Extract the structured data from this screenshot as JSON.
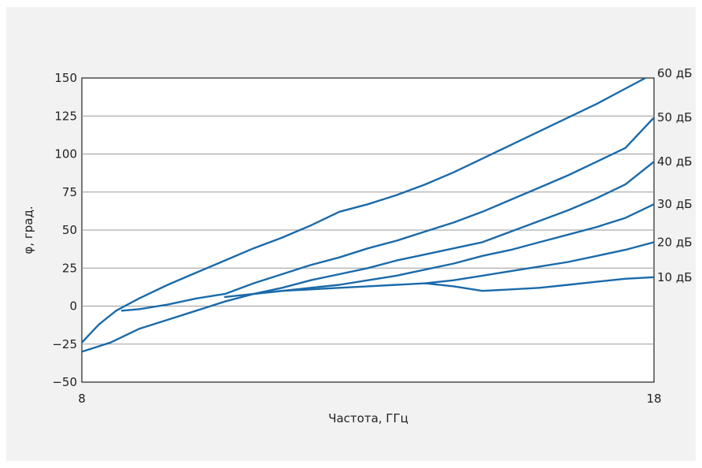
{
  "chart_data": {
    "type": "line",
    "xlabel": "Частота, ГГц",
    "ylabel": "φ, град.",
    "xlim": [
      8,
      18
    ],
    "ylim": [
      -50,
      150
    ],
    "x_ticks": [
      "8",
      "18"
    ],
    "y_ticks": [
      150,
      125,
      100,
      75,
      50,
      25,
      0,
      -25,
      -50
    ],
    "grid": "horizontal",
    "line_color": "#1a6aaa",
    "series": [
      {
        "name": "60 дБ",
        "x": [
          8.0,
          8.3,
          8.6,
          9.0,
          9.5,
          10.0,
          10.5,
          11.0,
          11.5,
          12.0,
          12.5,
          13.0,
          13.5,
          14.0,
          14.5,
          15.0,
          15.5,
          16.0,
          16.5,
          17.0,
          17.5,
          18.0
        ],
        "y": [
          -24,
          -12,
          -3,
          5,
          14,
          22,
          30,
          38,
          45,
          53,
          62,
          67,
          73,
          80,
          88,
          97,
          106,
          115,
          124,
          133,
          143,
          153
        ]
      },
      {
        "name": "50 дБ",
        "x": [
          8.7,
          9.0,
          9.5,
          10.0,
          10.5,
          11.0,
          11.5,
          12.0,
          12.5,
          13.0,
          13.5,
          14.0,
          14.5,
          15.0,
          15.5,
          16.0,
          16.5,
          17.0,
          17.5,
          18.0
        ],
        "y": [
          -3,
          -2,
          1,
          5,
          8,
          15,
          21,
          27,
          32,
          38,
          43,
          49,
          55,
          62,
          70,
          78,
          86,
          95,
          104,
          124
        ]
      },
      {
        "name": "40 дБ",
        "x": [
          10.5,
          11.0,
          11.5,
          12.0,
          12.5,
          13.0,
          13.5,
          14.0,
          14.5,
          15.0,
          15.5,
          16.0,
          16.5,
          17.0,
          17.5,
          18.0
        ],
        "y": [
          6,
          8,
          12,
          17,
          21,
          25,
          30,
          34,
          38,
          42,
          49,
          56,
          63,
          71,
          80,
          95
        ]
      },
      {
        "name": "30 дБ",
        "x": [
          11.0,
          11.5,
          12.0,
          12.5,
          13.0,
          13.5,
          14.0,
          14.5,
          15.0,
          15.5,
          16.0,
          16.5,
          17.0,
          17.5,
          18.0
        ],
        "y": [
          8,
          10,
          12,
          14,
          17,
          20,
          24,
          28,
          33,
          37,
          42,
          47,
          52,
          58,
          67
        ]
      },
      {
        "name": "20 дБ",
        "x": [
          14.0,
          14.5,
          15.0,
          15.5,
          16.0,
          16.5,
          17.0,
          17.5,
          18.0
        ],
        "y": [
          15,
          17,
          20,
          23,
          26,
          29,
          33,
          37,
          42
        ]
      },
      {
        "name": "10 дБ",
        "x": [
          8.0,
          8.5,
          9.0,
          9.5,
          10.0,
          10.5,
          11.0,
          11.5,
          12.0,
          12.5,
          13.0,
          13.5,
          14.0,
          14.5,
          15.0,
          15.5,
          16.0,
          16.5,
          17.0,
          17.5,
          18.0
        ],
        "y": [
          -30,
          -24,
          -15,
          -9,
          -3,
          3,
          8,
          10,
          11,
          12,
          13,
          14,
          15,
          13,
          10,
          11,
          12,
          14,
          16,
          18,
          19
        ]
      }
    ]
  }
}
